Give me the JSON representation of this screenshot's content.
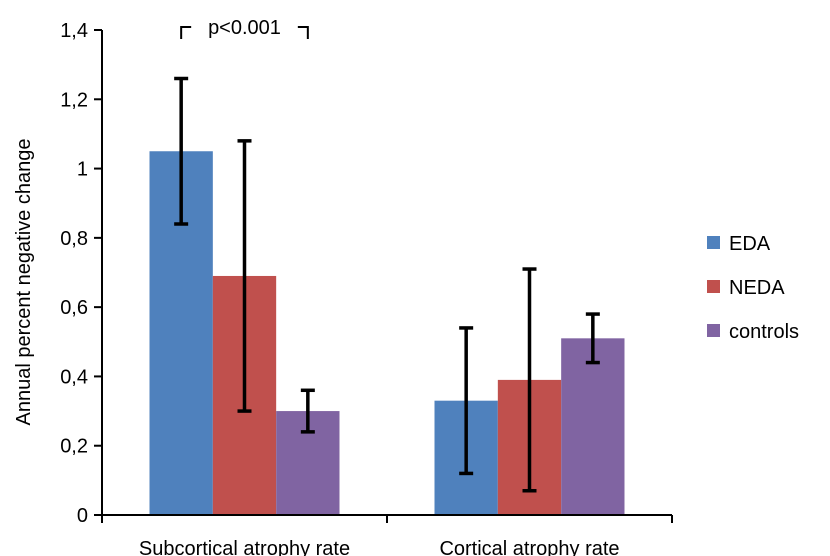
{
  "chart_data": {
    "type": "bar",
    "ylabel": "Annual percent negative change",
    "ylim": [
      0,
      1.4
    ],
    "yticks": [
      0,
      0.2,
      0.4,
      0.6,
      0.8,
      1.0,
      1.2,
      1.4
    ],
    "ytick_labels": [
      "0",
      "0,2",
      "0,4",
      "0,6",
      "0,8",
      "1",
      "1,2",
      "1,4"
    ],
    "categories": [
      "Subcortical atrophy rate",
      "Cortical atrophy rate"
    ],
    "series": [
      {
        "name": "EDA",
        "color": "#4F81BD",
        "values": [
          1.05,
          0.33
        ],
        "err_low": [
          0.84,
          0.12
        ],
        "err_high": [
          1.26,
          0.54
        ]
      },
      {
        "name": "NEDA",
        "color": "#C0504D",
        "values": [
          0.69,
          0.39
        ],
        "err_low": [
          0.3,
          0.07
        ],
        "err_high": [
          1.08,
          0.71
        ]
      },
      {
        "name": "controls",
        "color": "#8064A2",
        "values": [
          0.3,
          0.51
        ],
        "err_low": [
          0.24,
          0.44
        ],
        "err_high": [
          0.36,
          0.58
        ]
      }
    ],
    "legend_position": "right",
    "grid": false,
    "annotation": {
      "text": "p<0.001",
      "category": "Subcortical atrophy rate",
      "between": [
        "EDA",
        "controls"
      ]
    }
  }
}
